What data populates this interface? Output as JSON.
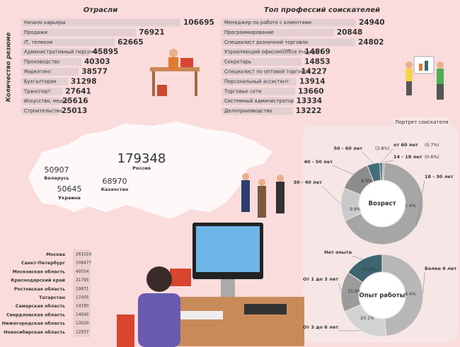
{
  "chart_data": [
    {
      "type": "bar",
      "title": "Отрасли",
      "y_label": "Количество резюме",
      "categories": [
        "Начало карьеры",
        "Продажи",
        "IT, телеком",
        "Административный персонал",
        "Производство",
        "Маркетинг",
        "Бухгалтерия",
        "Транспорт",
        "Искусство, медиа",
        "Строительство"
      ],
      "values": [
        106695,
        76921,
        62665,
        45895,
        40303,
        38577,
        31298,
        27641,
        25616,
        25013
      ],
      "color": "#e3cfd1"
    },
    {
      "type": "bar",
      "title": "Топ профессий соискателей",
      "categories": [
        "Менеджер по работе с клиентами",
        "Программирование",
        "Специалист розничной торговли",
        "Управляющий офисом(Office manager)",
        "Секретарь",
        "Специалист по оптовой торговли",
        "Персональный ассистент",
        "Торговые сети",
        "Системный администратор",
        "Делопроизводство"
      ],
      "values": [
        24940,
        20848,
        24802,
        14869,
        14853,
        14227,
        13914,
        13660,
        13334,
        13222
      ],
      "color": "#e3cfd1"
    },
    {
      "type": "pie",
      "title": "Возраст",
      "categories": [
        "14 - 18 лет",
        "18 - 30 лет",
        "30 - 40 лет",
        "40 - 50 лет",
        "50 - 60 лет",
        "от 60 лет"
      ],
      "values": [
        0.6,
        51.4,
        9.9,
        9.9,
        3.8,
        0.7
      ],
      "value_labels": [
        "(0.6%)",
        "51.4%",
        "9.9%",
        "9.9%",
        "(3.8%)",
        "(0.7%)"
      ],
      "colors": [
        "#7fa3ad",
        "#a6a6a6",
        "#c9c9c9",
        "#8c8c8c",
        "#3f6f7b",
        "#2c5763"
      ]
    },
    {
      "type": "pie",
      "title": "Опыт работы",
      "categories": [
        "Более 6 лет",
        "От 3 до 6 лет",
        "От 1 до 3 лет",
        "Нет опыта"
      ],
      "values": [
        48.4,
        20.1,
        15.9,
        15.6
      ],
      "value_labels": [
        "48.4%",
        "20.1%",
        "15.9%",
        "15.6%"
      ],
      "colors": [
        "#b7b7b7",
        "#d2d2d2",
        "#9b9b9b",
        "#3c6670"
      ]
    }
  ],
  "panel_label": "Портрет соискателя",
  "map": {
    "labels": [
      {
        "value": "179348",
        "name": "Россия"
      },
      {
        "value": "50907",
        "name": "Беларусь"
      },
      {
        "value": "68970",
        "name": "Казахстан"
      },
      {
        "value": "50645",
        "name": "Украина"
      }
    ]
  },
  "regions": {
    "rows": [
      [
        "Москва",
        "261024"
      ],
      [
        "Санкт-Петербург",
        "108477"
      ],
      [
        "Московская область",
        "40554"
      ],
      [
        "Краснодарский край",
        "31795"
      ],
      [
        "Ростовская область",
        "19871"
      ],
      [
        "Татарстан",
        "17405"
      ],
      [
        "Самарская область",
        "14190"
      ],
      [
        "Свердловская область",
        "14045"
      ],
      [
        "Нижегородская область",
        "13030"
      ],
      [
        "Новосибирская область",
        "12937"
      ]
    ]
  }
}
